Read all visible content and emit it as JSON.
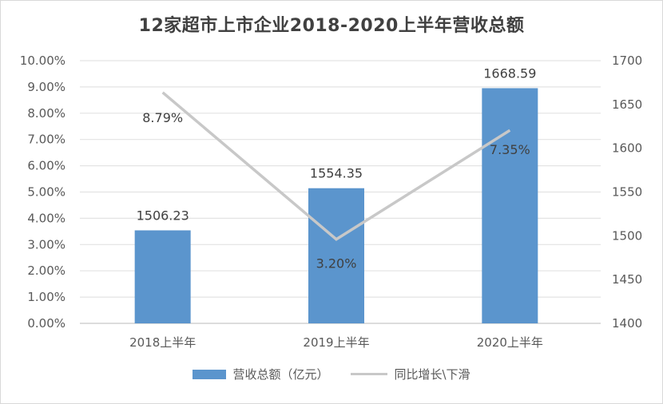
{
  "chart_data": {
    "type": "bar+line",
    "title": "12家超市上市企业2018-2020上半年营收总额",
    "categories": [
      "2018上半年",
      "2019上半年",
      "2020上半年"
    ],
    "series": [
      {
        "name": "营收总额（亿元）",
        "type": "bar",
        "axis": "right",
        "values": [
          1506.23,
          1554.35,
          1668.59
        ],
        "labels": [
          "1506.23",
          "1554.35",
          "1668.59"
        ],
        "color": "#5b95cd"
      },
      {
        "name": "同比增长\\下滑",
        "type": "line",
        "axis": "left",
        "values": [
          8.79,
          3.2,
          7.35
        ],
        "labels": [
          "8.79%",
          "3.20%",
          "7.35%"
        ],
        "color": "#c8c8c8"
      }
    ],
    "y_left": {
      "range": [
        0,
        10
      ],
      "ticks": [
        "0.00%",
        "1.00%",
        "2.00%",
        "3.00%",
        "4.00%",
        "5.00%",
        "6.00%",
        "7.00%",
        "8.00%",
        "9.00%",
        "10.00%"
      ]
    },
    "y_right": {
      "range": [
        1400,
        1700
      ],
      "ticks": [
        "1400",
        "1450",
        "1500",
        "1550",
        "1600",
        "1650",
        "1700"
      ]
    },
    "grid": true,
    "legend_position": "bottom"
  },
  "legend": {
    "bar_label": "营收总额（亿元）",
    "line_label": "同比增长\\下滑"
  }
}
